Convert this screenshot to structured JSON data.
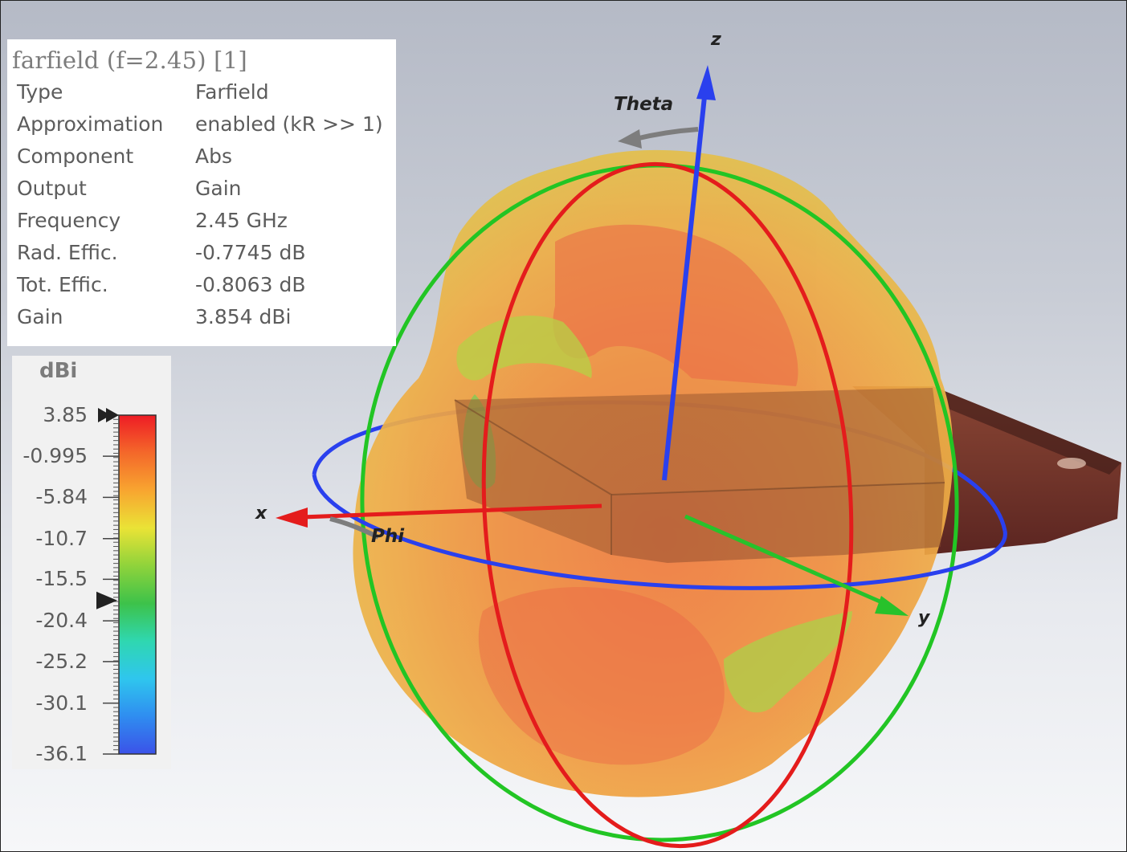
{
  "info": {
    "title": "farfield (f=2.45) [1]",
    "rows": [
      {
        "key": "Type",
        "value": "Farfield"
      },
      {
        "key": "Approximation",
        "value": "enabled (kR >> 1)"
      },
      {
        "key": "Component",
        "value": "Abs"
      },
      {
        "key": "Output",
        "value": "Gain"
      },
      {
        "key": "Frequency",
        "value": "2.45 GHz"
      },
      {
        "key": "Rad. Effic.",
        "value": "-0.7745 dB"
      },
      {
        "key": "Tot. Effic.",
        "value": "-0.8063 dB"
      },
      {
        "key": "Gain",
        "value": "3.854 dBi"
      }
    ]
  },
  "legend": {
    "unit": "dBi",
    "ticks": [
      "3.85",
      "-0.995",
      "-5.84",
      "-10.7",
      "-15.5",
      "-20.4",
      "-25.2",
      "-30.1",
      "-36.1"
    ],
    "max_marker_value": 3.85,
    "min_marker_value": -18.0,
    "colors": [
      "#ee1c25",
      "#f4682a",
      "#f8a530",
      "#eae336",
      "#8fd33b",
      "#3dc24a",
      "#2fd7b0",
      "#2fc6ee",
      "#2f8df0",
      "#3b52e8"
    ]
  },
  "axes": {
    "z_label": "z",
    "x_label": "x",
    "y_label": "y",
    "theta_label": "Theta",
    "phi_label": "Phi",
    "colors": {
      "x": "#e41c1c",
      "y": "#27c22b",
      "z": "#2a40ee",
      "arc": "#7d7d7d"
    }
  },
  "pattern": {
    "fill_outer": "#f2b04a",
    "fill_hot": "#ee6a3c",
    "fill_cool": "#b9cf3a",
    "device": "#6e2f2a"
  }
}
